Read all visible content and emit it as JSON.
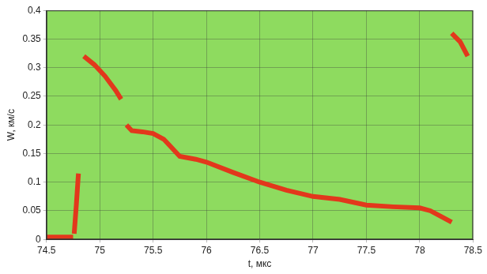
{
  "chart_data": {
    "type": "line",
    "x_label": "t, мкс",
    "y_label": "W, км/с",
    "x": [
      74.5,
      74.6,
      74.7,
      74.75,
      null,
      74.76,
      74.78,
      74.8,
      null,
      74.85,
      74.95,
      75.05,
      75.15,
      75.2,
      null,
      75.25,
      75.3,
      75.4,
      75.5,
      75.6,
      75.65,
      75.7,
      75.75,
      75.9,
      76.0,
      76.25,
      76.5,
      76.75,
      77.0,
      77.25,
      77.5,
      77.75,
      78.0,
      78.1,
      78.2,
      78.3,
      null,
      78.3,
      78.38,
      78.45
    ],
    "values": [
      0.004,
      0.004,
      0.004,
      0.004,
      null,
      0.01,
      0.06,
      0.115,
      null,
      0.32,
      0.305,
      0.285,
      0.26,
      0.245,
      null,
      0.2,
      0.19,
      0.188,
      0.185,
      0.175,
      0.165,
      0.155,
      0.145,
      0.14,
      0.135,
      0.117,
      0.1,
      0.086,
      0.075,
      0.07,
      0.06,
      0.057,
      0.055,
      0.05,
      0.04,
      0.03,
      null,
      0.36,
      0.345,
      0.32
    ],
    "color": "#e2381c",
    "xlim": [
      74.5,
      78.5
    ],
    "xticks": [
      74.5,
      75,
      75.5,
      76,
      76.5,
      77,
      77.5,
      78,
      78.5
    ],
    "ylim": [
      0,
      0.4
    ],
    "yticks": [
      0,
      0.05,
      0.1,
      0.15,
      0.2,
      0.25,
      0.3,
      0.35,
      0.4
    ],
    "grid": true
  }
}
